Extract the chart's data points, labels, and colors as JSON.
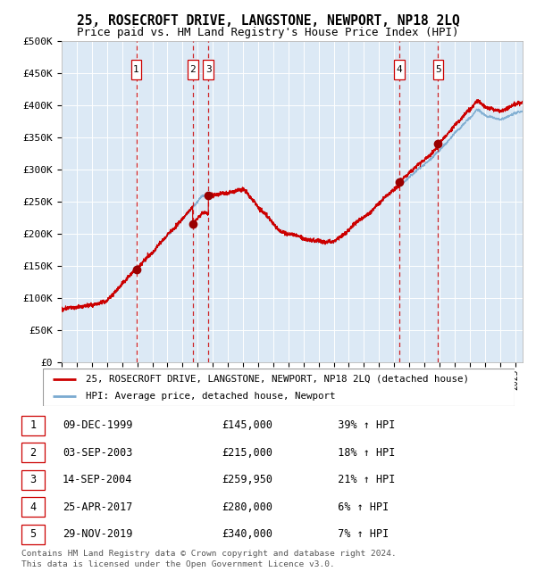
{
  "title": "25, ROSECROFT DRIVE, LANGSTONE, NEWPORT, NP18 2LQ",
  "subtitle": "Price paid vs. HM Land Registry's House Price Index (HPI)",
  "property_label": "25, ROSECROFT DRIVE, LANGSTONE, NEWPORT, NP18 2LQ (detached house)",
  "hpi_label": "HPI: Average price, detached house, Newport",
  "footnote1": "Contains HM Land Registry data © Crown copyright and database right 2024.",
  "footnote2": "This data is licensed under the Open Government Licence v3.0.",
  "transactions": [
    {
      "num": 1,
      "date": "09-DEC-1999",
      "price": 145000,
      "pct": "39%",
      "dir": "↑"
    },
    {
      "num": 2,
      "date": "03-SEP-2003",
      "price": 215000,
      "pct": "18%",
      "dir": "↑"
    },
    {
      "num": 3,
      "date": "14-SEP-2004",
      "price": 259950,
      "pct": "21%",
      "dir": "↑"
    },
    {
      "num": 4,
      "date": "25-APR-2017",
      "price": 280000,
      "pct": "6%",
      "dir": "↑"
    },
    {
      "num": 5,
      "date": "29-NOV-2019",
      "price": 340000,
      "pct": "7%",
      "dir": "↑"
    }
  ],
  "transaction_dates_decimal": [
    1999.94,
    2003.67,
    2004.71,
    2017.32,
    2019.91
  ],
  "transaction_prices": [
    145000,
    215000,
    259950,
    280000,
    340000
  ],
  "ylim": [
    0,
    500000
  ],
  "yticks": [
    0,
    50000,
    100000,
    150000,
    200000,
    250000,
    300000,
    350000,
    400000,
    450000,
    500000
  ],
  "xlim_start": 1995.0,
  "xlim_end": 2025.5,
  "plot_bg_color": "#dce9f5",
  "grid_color": "#ffffff",
  "property_line_color": "#cc0000",
  "hpi_line_color": "#7aaad0",
  "vline_color": "#cc0000",
  "marker_color": "#990000"
}
